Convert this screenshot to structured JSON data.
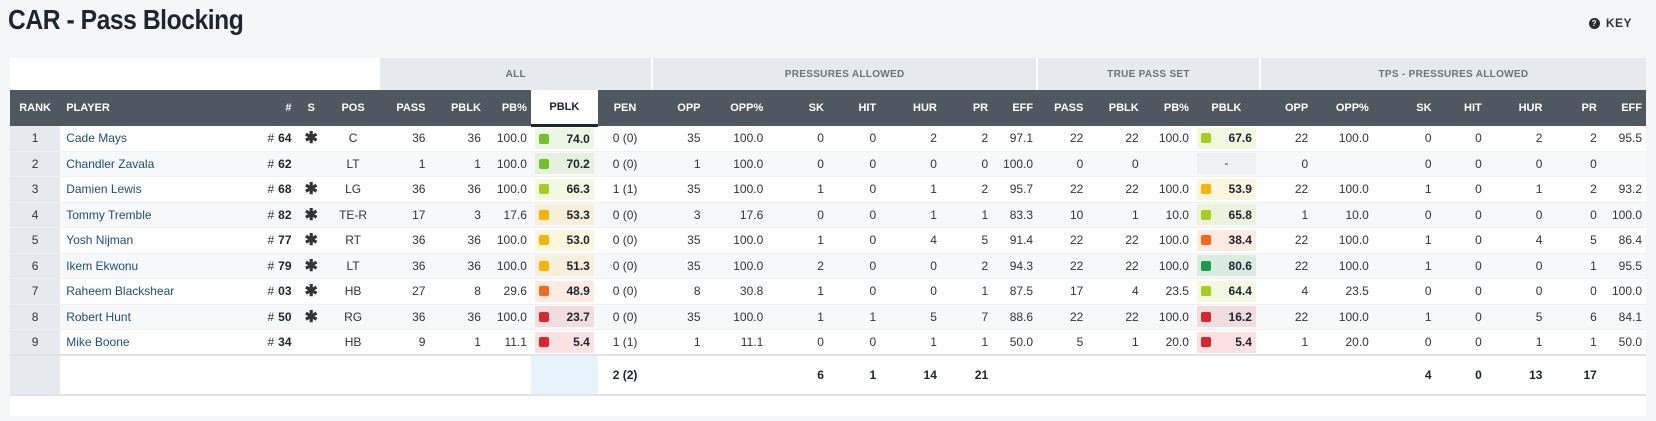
{
  "title": "CAR - Pass Blocking",
  "key_label": "KEY",
  "key_icon": "question-circle-icon",
  "groups": {
    "all": "ALL",
    "pressures": "PRESSURES ALLOWED",
    "true_pass_set": "TRUE PASS SET",
    "tps_pressures": "TPS - PRESSURES ALLOWED"
  },
  "headers": [
    "RANK",
    "PLAYER",
    "#",
    "S",
    "POS",
    "PASS",
    "PBLK",
    "PB%",
    "PBLK",
    "PEN",
    "OPP",
    "OPP%",
    "SK",
    "HIT",
    "HUR",
    "PR",
    "EFF",
    "PASS",
    "PBLK",
    "PB%",
    "PBLK",
    "OPP",
    "OPP%",
    "SK",
    "HIT",
    "HUR",
    "PR",
    "EFF"
  ],
  "grade_colors": {
    "elite": "#1f9a48",
    "high": "#72c02c",
    "good": "#a8cc21",
    "average": "#f8b30b",
    "below": "#f26b1d",
    "poor": "#d9262f"
  },
  "rows": [
    {
      "rank": "1",
      "player": "Cade Mays",
      "num": "64",
      "starter": "✱",
      "pos": "C",
      "pass": "36",
      "pblk": "36",
      "pbp": "100.0",
      "grade": "74.0",
      "grade_level": "high",
      "pen": "0 (0)",
      "opp": "35",
      "oppp": "100.0",
      "sk": "0",
      "hit": "0",
      "hur": "2",
      "pr": "2",
      "eff": "97.1",
      "t_pass": "22",
      "t_pblk": "22",
      "t_pbp": "100.0",
      "t_grade": "67.6",
      "t_grade_level": "good",
      "t_opp": "22",
      "t_oppp": "100.0",
      "t_sk": "0",
      "t_hit": "0",
      "t_hur": "2",
      "t_pr": "2",
      "t_eff": "95.5"
    },
    {
      "rank": "2",
      "player": "Chandler Zavala",
      "num": "62",
      "starter": "",
      "pos": "LT",
      "pass": "1",
      "pblk": "1",
      "pbp": "100.0",
      "grade": "70.2",
      "grade_level": "high",
      "pen": "0 (0)",
      "opp": "1",
      "oppp": "100.0",
      "sk": "0",
      "hit": "0",
      "hur": "0",
      "pr": "0",
      "eff": "100.0",
      "t_pass": "0",
      "t_pblk": "0",
      "t_pbp": "",
      "t_grade": "-",
      "t_grade_level": "",
      "t_opp": "0",
      "t_oppp": "",
      "t_sk": "0",
      "t_hit": "0",
      "t_hur": "0",
      "t_pr": "0",
      "t_eff": ""
    },
    {
      "rank": "3",
      "player": "Damien Lewis",
      "num": "68",
      "starter": "✱",
      "pos": "LG",
      "pass": "36",
      "pblk": "36",
      "pbp": "100.0",
      "grade": "66.3",
      "grade_level": "good",
      "pen": "1 (1)",
      "opp": "35",
      "oppp": "100.0",
      "sk": "1",
      "hit": "0",
      "hur": "1",
      "pr": "2",
      "eff": "95.7",
      "t_pass": "22",
      "t_pblk": "22",
      "t_pbp": "100.0",
      "t_grade": "53.9",
      "t_grade_level": "average",
      "t_opp": "22",
      "t_oppp": "100.0",
      "t_sk": "1",
      "t_hit": "0",
      "t_hur": "1",
      "t_pr": "2",
      "t_eff": "93.2"
    },
    {
      "rank": "4",
      "player": "Tommy Tremble",
      "num": "82",
      "starter": "✱",
      "pos": "TE-R",
      "pass": "17",
      "pblk": "3",
      "pbp": "17.6",
      "grade": "53.3",
      "grade_level": "average",
      "pen": "0 (0)",
      "opp": "3",
      "oppp": "17.6",
      "sk": "0",
      "hit": "0",
      "hur": "1",
      "pr": "1",
      "eff": "83.3",
      "t_pass": "10",
      "t_pblk": "1",
      "t_pbp": "10.0",
      "t_grade": "65.8",
      "t_grade_level": "good",
      "t_opp": "1",
      "t_oppp": "10.0",
      "t_sk": "0",
      "t_hit": "0",
      "t_hur": "0",
      "t_pr": "0",
      "t_eff": "100.0"
    },
    {
      "rank": "5",
      "player": "Yosh Nijman",
      "num": "77",
      "starter": "✱",
      "pos": "RT",
      "pass": "36",
      "pblk": "36",
      "pbp": "100.0",
      "grade": "53.0",
      "grade_level": "average",
      "pen": "0 (0)",
      "opp": "35",
      "oppp": "100.0",
      "sk": "1",
      "hit": "0",
      "hur": "4",
      "pr": "5",
      "eff": "91.4",
      "t_pass": "22",
      "t_pblk": "22",
      "t_pbp": "100.0",
      "t_grade": "38.4",
      "t_grade_level": "below",
      "t_opp": "22",
      "t_oppp": "100.0",
      "t_sk": "1",
      "t_hit": "0",
      "t_hur": "4",
      "t_pr": "5",
      "t_eff": "86.4"
    },
    {
      "rank": "6",
      "player": "Ikem Ekwonu",
      "num": "79",
      "starter": "✱",
      "pos": "LT",
      "pass": "36",
      "pblk": "36",
      "pbp": "100.0",
      "grade": "51.3",
      "grade_level": "average",
      "pen": "0 (0)",
      "opp": "35",
      "oppp": "100.0",
      "sk": "2",
      "hit": "0",
      "hur": "0",
      "pr": "2",
      "eff": "94.3",
      "t_pass": "22",
      "t_pblk": "22",
      "t_pbp": "100.0",
      "t_grade": "80.6",
      "t_grade_level": "elite",
      "t_opp": "22",
      "t_oppp": "100.0",
      "t_sk": "1",
      "t_hit": "0",
      "t_hur": "0",
      "t_pr": "1",
      "t_eff": "95.5"
    },
    {
      "rank": "7",
      "player": "Raheem Blackshear",
      "num": "03",
      "starter": "✱",
      "pos": "HB",
      "pass": "27",
      "pblk": "8",
      "pbp": "29.6",
      "grade": "48.9",
      "grade_level": "below",
      "pen": "0 (0)",
      "opp": "8",
      "oppp": "30.8",
      "sk": "1",
      "hit": "0",
      "hur": "0",
      "pr": "1",
      "eff": "87.5",
      "t_pass": "17",
      "t_pblk": "4",
      "t_pbp": "23.5",
      "t_grade": "64.4",
      "t_grade_level": "good",
      "t_opp": "4",
      "t_oppp": "23.5",
      "t_sk": "0",
      "t_hit": "0",
      "t_hur": "0",
      "t_pr": "0",
      "t_eff": "100.0"
    },
    {
      "rank": "8",
      "player": "Robert Hunt",
      "num": "50",
      "starter": "✱",
      "pos": "RG",
      "pass": "36",
      "pblk": "36",
      "pbp": "100.0",
      "grade": "23.7",
      "grade_level": "poor",
      "pen": "0 (0)",
      "opp": "35",
      "oppp": "100.0",
      "sk": "1",
      "hit": "1",
      "hur": "5",
      "pr": "7",
      "eff": "88.6",
      "t_pass": "22",
      "t_pblk": "22",
      "t_pbp": "100.0",
      "t_grade": "16.2",
      "t_grade_level": "poor",
      "t_opp": "22",
      "t_oppp": "100.0",
      "t_sk": "1",
      "t_hit": "0",
      "t_hur": "5",
      "t_pr": "6",
      "t_eff": "84.1"
    },
    {
      "rank": "9",
      "player": "Mike Boone",
      "num": "34",
      "starter": "",
      "pos": "HB",
      "pass": "9",
      "pblk": "1",
      "pbp": "11.1",
      "grade": "5.4",
      "grade_level": "poor",
      "pen": "1 (1)",
      "opp": "1",
      "oppp": "11.1",
      "sk": "0",
      "hit": "0",
      "hur": "1",
      "pr": "1",
      "eff": "50.0",
      "t_pass": "5",
      "t_pblk": "1",
      "t_pbp": "20.0",
      "t_grade": "5.4",
      "t_grade_level": "poor",
      "t_opp": "1",
      "t_oppp": "20.0",
      "t_sk": "0",
      "t_hit": "0",
      "t_hur": "1",
      "t_pr": "1",
      "t_eff": "50.0"
    }
  ],
  "totals": {
    "pen": "2 (2)",
    "sk": "6",
    "hit": "1",
    "hur": "14",
    "pr": "21",
    "t_sk": "4",
    "t_hit": "0",
    "t_hur": "13",
    "t_pr": "17"
  }
}
